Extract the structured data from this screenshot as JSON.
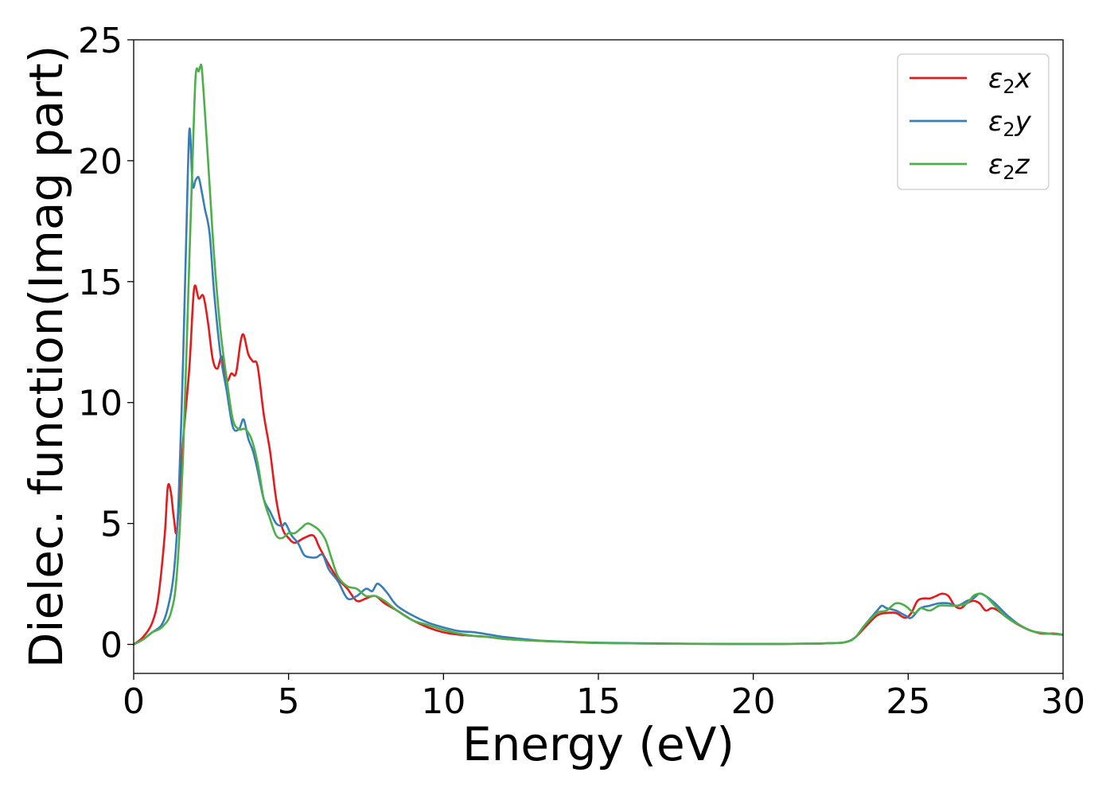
{
  "chart_data": {
    "type": "line",
    "title": "",
    "xlabel": "Energy (eV)",
    "ylabel": "Dielec. function(Imag part)",
    "xlim": [
      0,
      30
    ],
    "ylim": [
      -1.2,
      25
    ],
    "xticks": [
      "0",
      "5",
      "10",
      "15",
      "20",
      "25",
      "30"
    ],
    "yticks": [
      "0",
      "5",
      "10",
      "15",
      "20",
      "25"
    ],
    "grid": false,
    "legend_position": "top-right",
    "series": [
      {
        "name": "ε2x",
        "legend_symbol": "ε",
        "legend_subscript": "2",
        "legend_suffix": "x",
        "color": "#e41a1c",
        "x": [
          0,
          0.3,
          0.6,
          0.8,
          1.0,
          1.1,
          1.2,
          1.3,
          1.4,
          1.6,
          1.8,
          1.95,
          2.1,
          2.25,
          2.4,
          2.55,
          2.7,
          2.85,
          3.0,
          3.15,
          3.3,
          3.45,
          3.55,
          3.7,
          3.85,
          4.0,
          4.2,
          4.4,
          4.6,
          4.8,
          5.0,
          5.2,
          5.5,
          5.8,
          6.0,
          6.3,
          6.6,
          6.9,
          7.2,
          7.5,
          7.8,
          8.1,
          8.5,
          9.0,
          9.5,
          10.0,
          10.5,
          11.0,
          11.5,
          12.0,
          13.0,
          14.0,
          15.0,
          17.0,
          19.0,
          21.0,
          22.5,
          23.0,
          23.3,
          23.6,
          24.0,
          24.3,
          24.6,
          24.9,
          25.1,
          25.3,
          25.5,
          25.7,
          25.9,
          26.1,
          26.3,
          26.5,
          26.7,
          26.9,
          27.1,
          27.3,
          27.5,
          27.7,
          27.9,
          28.2,
          28.5,
          28.9,
          29.3,
          29.7,
          30.0
        ],
        "y": [
          0,
          0.3,
          0.9,
          2.0,
          4.5,
          6.5,
          6.3,
          5.2,
          4.8,
          8.5,
          11.5,
          14.7,
          14.3,
          14.4,
          13.3,
          11.8,
          11.4,
          11.9,
          10.9,
          11.2,
          11.2,
          12.5,
          12.8,
          12.0,
          11.7,
          11.5,
          9.5,
          8.0,
          6.0,
          4.8,
          4.4,
          4.2,
          4.4,
          4.5,
          4.0,
          3.3,
          2.7,
          2.3,
          1.8,
          1.9,
          2.0,
          1.7,
          1.4,
          1.0,
          0.7,
          0.5,
          0.4,
          0.35,
          0.3,
          0.22,
          0.15,
          0.1,
          0.06,
          0.03,
          0.02,
          0.02,
          0.05,
          0.1,
          0.3,
          0.7,
          1.2,
          1.3,
          1.3,
          1.1,
          1.3,
          1.8,
          1.9,
          1.9,
          2.0,
          2.1,
          2.0,
          1.6,
          1.5,
          1.7,
          1.8,
          1.7,
          1.4,
          1.5,
          1.4,
          1.1,
          0.85,
          0.6,
          0.45,
          0.45,
          0.4
        ]
      },
      {
        "name": "ε2y",
        "legend_symbol": "ε",
        "legend_subscript": "2",
        "legend_suffix": "y",
        "color": "#377eb8",
        "x": [
          0,
          0.3,
          0.6,
          0.9,
          1.1,
          1.3,
          1.45,
          1.6,
          1.7,
          1.8,
          1.9,
          2.0,
          2.1,
          2.2,
          2.3,
          2.45,
          2.6,
          2.8,
          3.0,
          3.2,
          3.4,
          3.55,
          3.7,
          3.85,
          4.0,
          4.2,
          4.4,
          4.6,
          4.8,
          4.9,
          5.1,
          5.3,
          5.5,
          5.7,
          5.9,
          6.1,
          6.3,
          6.6,
          6.9,
          7.2,
          7.5,
          7.7,
          7.85,
          8.0,
          8.2,
          8.5,
          9.0,
          9.5,
          10.0,
          10.5,
          11.0,
          11.5,
          12.0,
          13.0,
          14.0,
          15.0,
          17.0,
          19.0,
          21.0,
          22.5,
          23.0,
          23.3,
          23.6,
          24.0,
          24.15,
          24.3,
          24.6,
          24.9,
          25.1,
          25.4,
          25.7,
          26.0,
          26.3,
          26.6,
          26.9,
          27.1,
          27.3,
          27.5,
          27.8,
          28.2,
          28.6,
          29.0,
          29.5,
          30.0
        ],
        "y": [
          0,
          0.2,
          0.5,
          0.8,
          1.5,
          3.0,
          6.0,
          12.0,
          17.0,
          21.3,
          19.0,
          19.2,
          19.3,
          18.7,
          18.0,
          17.0,
          14.5,
          12.0,
          10.5,
          9.0,
          8.9,
          9.3,
          8.5,
          8.0,
          7.2,
          6.0,
          5.5,
          5.0,
          4.9,
          5.0,
          4.5,
          4.2,
          3.7,
          3.6,
          3.6,
          3.7,
          3.1,
          2.6,
          1.9,
          2.0,
          2.3,
          2.2,
          2.5,
          2.4,
          2.1,
          1.6,
          1.2,
          0.9,
          0.7,
          0.55,
          0.5,
          0.4,
          0.3,
          0.17,
          0.11,
          0.07,
          0.04,
          0.02,
          0.02,
          0.05,
          0.1,
          0.3,
          0.8,
          1.4,
          1.6,
          1.5,
          1.4,
          1.2,
          1.1,
          1.5,
          1.6,
          1.7,
          1.7,
          1.6,
          1.8,
          1.9,
          2.1,
          2.0,
          1.7,
          1.2,
          0.8,
          0.55,
          0.45,
          0.4
        ]
      },
      {
        "name": "ε2z",
        "legend_symbol": "ε",
        "legend_subscript": "2",
        "legend_suffix": "z",
        "color": "#4daf4a",
        "x": [
          0,
          0.3,
          0.6,
          0.9,
          1.2,
          1.4,
          1.6,
          1.75,
          1.9,
          2.0,
          2.1,
          2.15,
          2.2,
          2.3,
          2.45,
          2.6,
          2.8,
          3.0,
          3.2,
          3.4,
          3.6,
          3.8,
          4.0,
          4.2,
          4.4,
          4.6,
          4.8,
          5.0,
          5.2,
          5.4,
          5.6,
          5.8,
          6.0,
          6.2,
          6.4,
          6.6,
          6.9,
          7.2,
          7.5,
          7.8,
          8.1,
          8.5,
          9.0,
          9.5,
          10.0,
          10.5,
          11.0,
          11.5,
          12.0,
          13.0,
          14.0,
          15.0,
          17.0,
          19.0,
          21.0,
          22.5,
          23.0,
          23.3,
          23.6,
          24.0,
          24.3,
          24.6,
          24.9,
          25.2,
          25.4,
          25.7,
          26.0,
          26.3,
          26.6,
          26.9,
          27.1,
          27.3,
          27.5,
          27.8,
          28.2,
          28.6,
          29.0,
          29.5,
          30.0
        ],
        "y": [
          0,
          0.2,
          0.5,
          0.7,
          1.3,
          3.0,
          8.0,
          14.0,
          20.0,
          23.5,
          23.7,
          23.9,
          23.8,
          22.0,
          19.0,
          16.0,
          13.0,
          11.0,
          9.3,
          8.9,
          8.9,
          8.5,
          7.5,
          6.0,
          5.2,
          4.5,
          4.4,
          4.6,
          4.6,
          4.8,
          5.0,
          4.9,
          4.7,
          4.3,
          3.5,
          2.8,
          2.4,
          2.3,
          2.0,
          2.0,
          1.8,
          1.4,
          1.0,
          0.8,
          0.6,
          0.45,
          0.35,
          0.3,
          0.22,
          0.15,
          0.1,
          0.06,
          0.03,
          0.02,
          0.02,
          0.05,
          0.1,
          0.3,
          0.8,
          1.3,
          1.4,
          1.7,
          1.6,
          1.3,
          1.5,
          1.4,
          1.6,
          1.6,
          1.6,
          1.7,
          2.0,
          2.1,
          2.0,
          1.6,
          1.1,
          0.8,
          0.55,
          0.45,
          0.4
        ]
      }
    ]
  }
}
